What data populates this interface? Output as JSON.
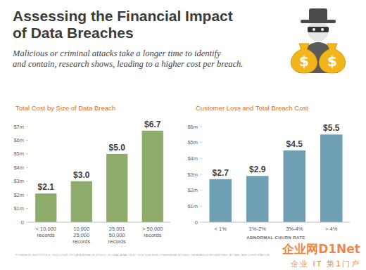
{
  "title": "Assessing the Financial Impact\nof Data Breaches",
  "subtitle": "Malicious or criminal attacks take a longer time to identify\nand contain, research shows, leading to a higher cost per breach.",
  "icon_symbol": "$",
  "chart_data": [
    {
      "type": "bar",
      "title": "Total Cost by Size of Data Breach",
      "categories": [
        "< 10,000\nrecords",
        "10,000\n25,000\nrecords",
        "25,001\n50,000\nrecords",
        "> 50,000\nrecords"
      ],
      "values": [
        2.1,
        3.0,
        5.0,
        6.7
      ],
      "value_labels": [
        "$2.1",
        "$3.0",
        "$5.0",
        "$6.7"
      ],
      "color": "#8dab6b",
      "ylim": [
        0,
        7
      ],
      "yticks": [
        0,
        {
          "value": 1,
          "label": "$1m"
        },
        {
          "value": 2,
          "label": "$2m"
        },
        {
          "value": 3,
          "label": "$3m"
        },
        {
          "value": 4,
          "label": "$4m"
        },
        {
          "value": 5,
          "label": "$5m"
        },
        {
          "value": 6,
          "label": "$6m"
        },
        {
          "value": 7,
          "label": "$7m"
        }
      ],
      "grid": false,
      "data_labels": true
    },
    {
      "type": "bar",
      "title": "Customer Loss and Total Breach Cost",
      "categories": [
        "< 1%",
        "1%-2%",
        "3%-4%",
        "> 4%"
      ],
      "xlabel": "ABNORMAL CHURN RATE",
      "values": [
        2.7,
        2.9,
        4.5,
        5.5
      ],
      "value_labels": [
        "$2.7",
        "$2.9",
        "$4.5",
        "$5.5"
      ],
      "color": "#6f9fb4",
      "ylim": [
        0,
        6
      ],
      "yticks": [
        0,
        {
          "value": 1,
          "label": "$1m"
        },
        {
          "value": 2,
          "label": "$2m"
        },
        {
          "value": 3,
          "label": "$3m"
        },
        {
          "value": 4,
          "label": "$4m"
        },
        {
          "value": 5,
          "label": "$5m"
        },
        {
          "value": 6,
          "label": "$6m"
        }
      ],
      "grid": false,
      "data_labels": true
    }
  ],
  "source": "PONEMON INSTITUTE'S \"2016 COST OF DATA BREACH STUDY: GLOBAL ANALYSIS,\" 2016 (UNLESS OTHERWISE NOTED); RESEARCH SPONSORED BY IBM; IBM CORPORATION",
  "watermark": {
    "logo": "企业网D1Net",
    "tagline": "企业 IT 第1门户"
  }
}
